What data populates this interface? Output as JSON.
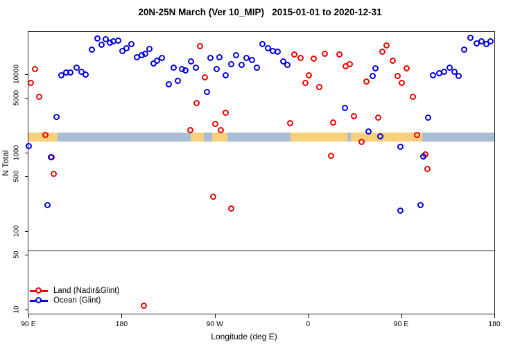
{
  "title": "20N-25N March (Ver 10_MIP)   2015-01-01 to 2020-12-31",
  "chart_data": {
    "type": "scatter",
    "title": "20N-25N March (Ver 10_MIP)   2015-01-01 to 2020-12-31",
    "xlabel": "Longitude (deg E)",
    "ylabel": "N Total",
    "x_axis": {
      "range_deg_e": [
        90,
        540
      ],
      "note": "longitude axis starts at 90E and wraps eastward around the globe",
      "ticks": [
        {
          "lon": 90,
          "label": "90 E"
        },
        {
          "lon": 180,
          "label": "180"
        },
        {
          "lon": 270,
          "label": "90 W"
        },
        {
          "lon": 360,
          "label": "0"
        },
        {
          "lon": 450,
          "label": "90 E"
        },
        {
          "lon": 540,
          "label": "180"
        }
      ]
    },
    "y_axis": {
      "scale": "log",
      "range": [
        8.5,
        35000
      ],
      "ticks": [
        {
          "v": 10000,
          "label": "10000"
        },
        {
          "v": 5000,
          "label": "5000"
        },
        {
          "v": 1000,
          "label": "1000"
        },
        {
          "v": 500,
          "label": "500"
        },
        {
          "v": 100,
          "label": "100"
        },
        {
          "v": 50,
          "label": "50"
        },
        {
          "v": 10,
          "label": "10"
        }
      ]
    },
    "reference_line_y": 57,
    "map_band": {
      "value_range": [
        1400,
        1850
      ],
      "land_color": "#f8d07c",
      "ocean_color": "#a9bdd7",
      "segments": [
        {
          "from": 90,
          "to": 118,
          "type": "land"
        },
        {
          "from": 118,
          "to": 247,
          "type": "ocean"
        },
        {
          "from": 247,
          "to": 259.5,
          "type": "land"
        },
        {
          "from": 259.5,
          "to": 267.5,
          "type": "ocean"
        },
        {
          "from": 267.5,
          "to": 282,
          "type": "land"
        },
        {
          "from": 282,
          "to": 343,
          "type": "ocean"
        },
        {
          "from": 343,
          "to": 398,
          "type": "land"
        },
        {
          "from": 398,
          "to": 401.5,
          "type": "ocean"
        },
        {
          "from": 401.5,
          "to": 470.5,
          "type": "land"
        },
        {
          "from": 470.5,
          "to": 540,
          "type": "ocean"
        }
      ]
    },
    "legend": {
      "position": "bottom-left"
    },
    "series": [
      {
        "name": "Land (Nadir&Glint)",
        "color": "#ee0000",
        "points": [
          [
            97,
            11500
          ],
          [
            93,
            7700
          ],
          [
            101,
            5100
          ],
          [
            107,
            1660
          ],
          [
            113,
            860
          ],
          [
            115,
            530
          ],
          [
            202,
            11
          ],
          [
            247,
            1920
          ],
          [
            253,
            4200
          ],
          [
            256,
            22600
          ],
          [
            261,
            9000
          ],
          [
            269,
            270
          ],
          [
            271,
            2300
          ],
          [
            276,
            1920
          ],
          [
            281,
            3200
          ],
          [
            286,
            190
          ],
          [
            343,
            2360
          ],
          [
            347,
            17700
          ],
          [
            353,
            16000
          ],
          [
            358,
            7700
          ],
          [
            361,
            9600
          ],
          [
            366,
            15700
          ],
          [
            371,
            6800
          ],
          [
            377,
            18100
          ],
          [
            383,
            900
          ],
          [
            385,
            2380
          ],
          [
            391,
            17700
          ],
          [
            397,
            12500
          ],
          [
            401,
            13300
          ],
          [
            405,
            2900
          ],
          [
            412,
            1360
          ],
          [
            417,
            8000
          ],
          [
            428,
            2770
          ],
          [
            432,
            19200
          ],
          [
            436,
            23100
          ],
          [
            442,
            14700
          ],
          [
            447,
            9400
          ],
          [
            451,
            7700
          ],
          [
            456,
            11800
          ],
          [
            462,
            5100
          ],
          [
            466,
            1660
          ],
          [
            474,
            930
          ],
          [
            476,
            610
          ]
        ]
      },
      {
        "name": "Ocean (Glint)",
        "color": "#0000dd",
        "points": [
          [
            90.5,
            1190
          ],
          [
            109,
            210
          ],
          [
            112,
            870
          ],
          [
            117.5,
            2800
          ],
          [
            122,
            9600
          ],
          [
            127,
            10400
          ],
          [
            131,
            10400
          ],
          [
            137,
            12000
          ],
          [
            141.5,
            10600
          ],
          [
            145.5,
            9800
          ],
          [
            151.5,
            20400
          ],
          [
            157,
            28300
          ],
          [
            161,
            23500
          ],
          [
            165,
            27700
          ],
          [
            169,
            25000
          ],
          [
            172.5,
            26100
          ],
          [
            177,
            26600
          ],
          [
            181,
            19600
          ],
          [
            185,
            21200
          ],
          [
            190,
            24000
          ],
          [
            195,
            16300
          ],
          [
            200,
            17300
          ],
          [
            203,
            18100
          ],
          [
            207,
            20800
          ],
          [
            211,
            13600
          ],
          [
            214.5,
            14700
          ],
          [
            219,
            16000
          ],
          [
            226,
            7400
          ],
          [
            230.5,
            12000
          ],
          [
            235,
            8200
          ],
          [
            238.5,
            11500
          ],
          [
            242,
            11100
          ],
          [
            247.5,
            14400
          ],
          [
            252,
            12000
          ],
          [
            263,
            5900
          ],
          [
            266,
            16000
          ],
          [
            272,
            11500
          ],
          [
            275,
            16400
          ],
          [
            281,
            9600
          ],
          [
            286,
            13300
          ],
          [
            291,
            17300
          ],
          [
            296,
            13000
          ],
          [
            301,
            16000
          ],
          [
            306.5,
            15000
          ],
          [
            311,
            12000
          ],
          [
            316.5,
            24000
          ],
          [
            322,
            21200
          ],
          [
            326.5,
            19600
          ],
          [
            331,
            19200
          ],
          [
            336.5,
            14400
          ],
          [
            340.5,
            13000
          ],
          [
            396,
            3700
          ],
          [
            419,
            1840
          ],
          [
            423,
            9400
          ],
          [
            425.5,
            11800
          ],
          [
            430,
            1600
          ],
          [
            449.5,
            1180
          ],
          [
            449.5,
            180
          ],
          [
            469,
            210
          ],
          [
            471.5,
            890
          ],
          [
            476.5,
            2770
          ],
          [
            481,
            9600
          ],
          [
            487,
            10200
          ],
          [
            492,
            10600
          ],
          [
            497,
            12000
          ],
          [
            502,
            10600
          ],
          [
            506,
            9400
          ],
          [
            511,
            20400
          ],
          [
            517,
            28900
          ],
          [
            523,
            24500
          ],
          [
            528,
            26100
          ],
          [
            532.5,
            24000
          ],
          [
            537,
            26100
          ]
        ]
      }
    ]
  }
}
